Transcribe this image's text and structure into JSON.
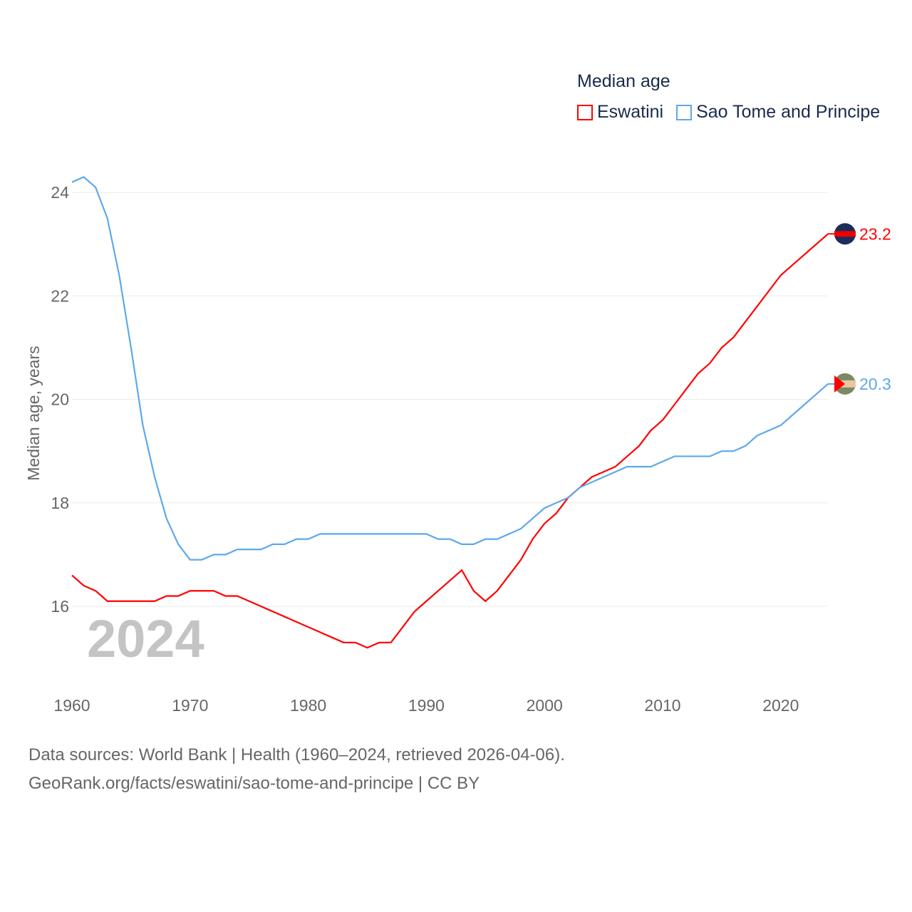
{
  "chart_data": {
    "type": "line",
    "title": "Median age",
    "ylabel": "Median age, years",
    "xlabel": "",
    "ylim": [
      15,
      24.4
    ],
    "xlim": [
      1960,
      2024
    ],
    "yticks": [
      16,
      18,
      20,
      22,
      24
    ],
    "xticks": [
      1960,
      1970,
      1980,
      1990,
      2000,
      2010,
      2020
    ],
    "grid": true,
    "legend_position": "top-right",
    "year_label": "2024",
    "x": [
      1960,
      1961,
      1962,
      1963,
      1964,
      1965,
      1966,
      1967,
      1968,
      1969,
      1970,
      1971,
      1972,
      1973,
      1974,
      1975,
      1976,
      1977,
      1978,
      1979,
      1980,
      1981,
      1982,
      1983,
      1984,
      1985,
      1986,
      1987,
      1988,
      1989,
      1990,
      1991,
      1992,
      1993,
      1994,
      1995,
      1996,
      1997,
      1998,
      1999,
      2000,
      2001,
      2002,
      2003,
      2004,
      2005,
      2006,
      2007,
      2008,
      2009,
      2010,
      2011,
      2012,
      2013,
      2014,
      2015,
      2016,
      2017,
      2018,
      2019,
      2020,
      2021,
      2022,
      2023,
      2024
    ],
    "series": [
      {
        "name": "Eswatini",
        "color": "#ff0000",
        "end_label": "23.2",
        "values": [
          16.6,
          16.4,
          16.3,
          16.1,
          16.1,
          16.1,
          16.1,
          16.1,
          16.2,
          16.2,
          16.3,
          16.3,
          16.3,
          16.2,
          16.2,
          16.1,
          16.0,
          15.9,
          15.8,
          15.7,
          15.6,
          15.5,
          15.4,
          15.3,
          15.3,
          15.2,
          15.3,
          15.3,
          15.6,
          15.9,
          16.1,
          16.3,
          16.5,
          16.7,
          16.3,
          16.1,
          16.3,
          16.6,
          16.9,
          17.3,
          17.6,
          17.8,
          18.1,
          18.3,
          18.5,
          18.6,
          18.7,
          18.9,
          19.1,
          19.4,
          19.6,
          19.9,
          20.2,
          20.5,
          20.7,
          21.0,
          21.2,
          21.5,
          21.8,
          22.1,
          22.4,
          22.6,
          22.8,
          23.0,
          23.2
        ]
      },
      {
        "name": "Sao Tome and Principe",
        "color": "#5ea8ec",
        "end_label": "20.3",
        "values": [
          24.2,
          24.3,
          24.1,
          23.5,
          22.4,
          21.0,
          19.5,
          18.5,
          17.7,
          17.2,
          16.9,
          16.9,
          17.0,
          17.0,
          17.1,
          17.1,
          17.1,
          17.2,
          17.2,
          17.3,
          17.3,
          17.4,
          17.4,
          17.4,
          17.4,
          17.4,
          17.4,
          17.4,
          17.4,
          17.4,
          17.4,
          17.3,
          17.3,
          17.2,
          17.2,
          17.3,
          17.3,
          17.4,
          17.5,
          17.7,
          17.9,
          18.0,
          18.1,
          18.3,
          18.4,
          18.5,
          18.6,
          18.7,
          18.7,
          18.7,
          18.8,
          18.9,
          18.9,
          18.9,
          18.9,
          19.0,
          19.0,
          19.1,
          19.3,
          19.4,
          19.5,
          19.7,
          19.9,
          20.1,
          20.3
        ]
      }
    ]
  },
  "legend": {
    "title": "Median age",
    "items": [
      "Eswatini",
      "Sao Tome and Principe"
    ]
  },
  "footer": {
    "line1": "Data sources: World Bank | Health (1960–2024, retrieved 2026-04-06).",
    "line2": "GeoRank.org/facts/eswatini/sao-tome-and-principe | CC BY"
  }
}
